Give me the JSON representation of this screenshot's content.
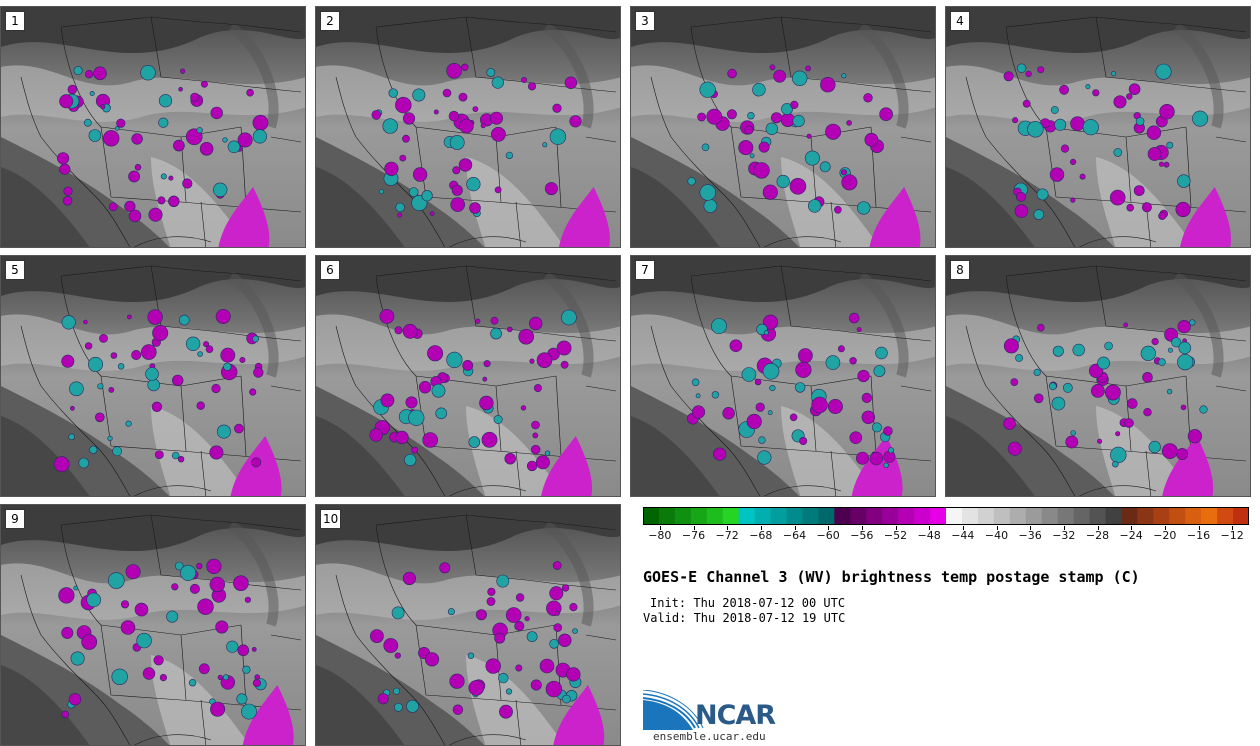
{
  "panels": [
    {
      "label": "1"
    },
    {
      "label": "2"
    },
    {
      "label": "3"
    },
    {
      "label": "4"
    },
    {
      "label": "5"
    },
    {
      "label": "6"
    },
    {
      "label": "7"
    },
    {
      "label": "8"
    },
    {
      "label": "9"
    },
    {
      "label": "10"
    }
  ],
  "colorbar": {
    "ticks": [
      "−80",
      "−76",
      "−72",
      "−68",
      "−64",
      "−60",
      "−56",
      "−52",
      "−48",
      "−44",
      "−40",
      "−36",
      "−32",
      "−28",
      "−24",
      "−20",
      "−16",
      "−12"
    ],
    "min": -82,
    "max": -10,
    "colors": [
      "#006400",
      "#0a7a0a",
      "#109010",
      "#16a616",
      "#1dbd1d",
      "#26d426",
      "#00c3c3",
      "#00b0b0",
      "#009e9e",
      "#008c8c",
      "#007a7a",
      "#006868",
      "#4d004d",
      "#660066",
      "#800080",
      "#990099",
      "#b300b3",
      "#cc00cc",
      "#e600e6",
      "#f5f5f5",
      "#e3e3e3",
      "#d1d1d1",
      "#bfbfbf",
      "#adadad",
      "#9b9b9b",
      "#898989",
      "#777777",
      "#656565",
      "#535353",
      "#414141",
      "#6b2a16",
      "#8a3515",
      "#a84014",
      "#c24f12",
      "#d85e10",
      "#e86e0d",
      "#d04a12",
      "#c03010"
    ]
  },
  "title": "GOES-E Channel 3 (WV) brightness temp postage stamp (C)",
  "init": "Init: Thu 2018-07-12 00 UTC",
  "valid": "Valid: Thu 2018-07-12 19 UTC",
  "logo": {
    "name": "NCAR",
    "url": "ensemble.ucar.edu"
  }
}
